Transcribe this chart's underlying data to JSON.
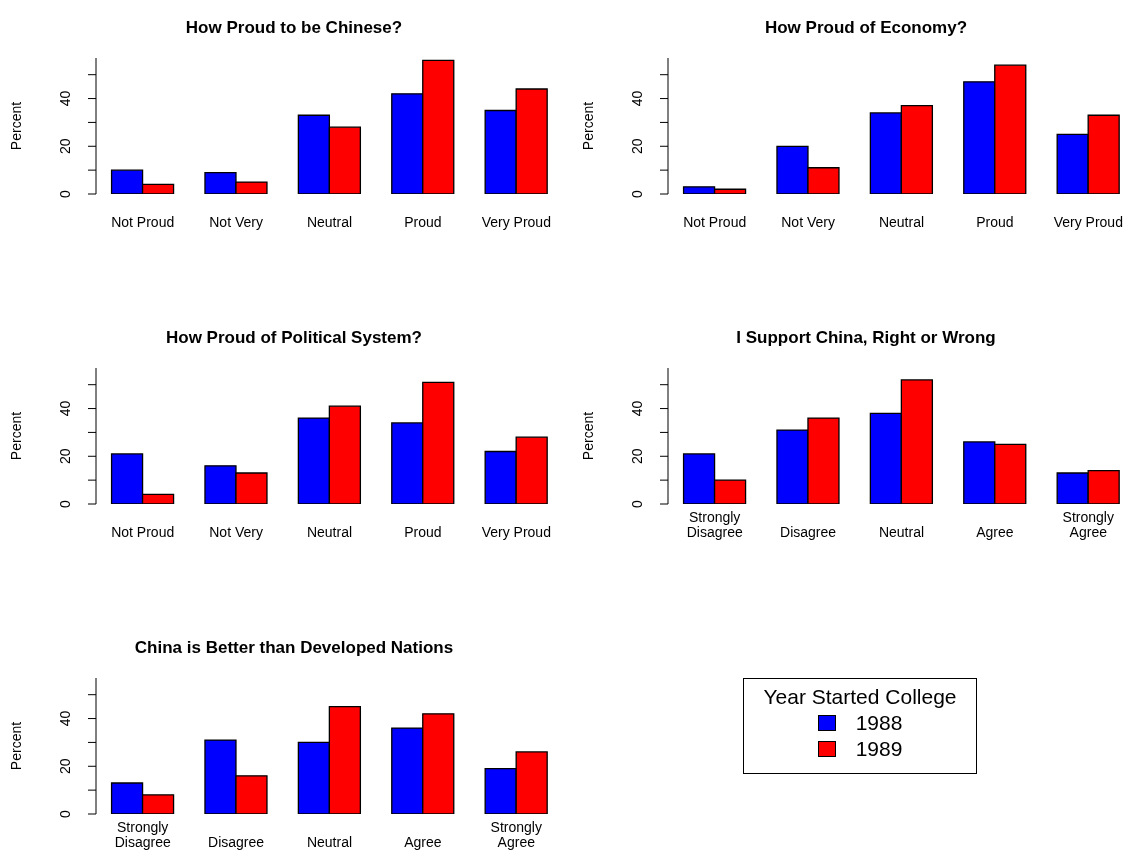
{
  "chart_data": [
    {
      "type": "bar",
      "title": "How Proud to be Chinese?",
      "ylabel": "Percent",
      "categories": [
        "Not Proud",
        "Not Very",
        "Neutral",
        "Proud",
        "Very Proud"
      ],
      "ylim": [
        0,
        57
      ],
      "yticks": [
        0,
        {
          "value": 10,
          "label": null
        },
        20,
        {
          "value": 30,
          "label": null
        },
        40,
        {
          "value": 50,
          "label": null
        }
      ],
      "grid": false,
      "legend": false,
      "series": [
        {
          "color": "#0000ff",
          "values": [
            10,
            9,
            33,
            42,
            35
          ]
        },
        {
          "color": "#ff0000",
          "values": [
            4,
            5,
            28,
            56,
            44
          ]
        }
      ]
    },
    {
      "type": "bar",
      "title": "How Proud of Economy?",
      "ylabel": "Percent",
      "categories": [
        "Not Proud",
        "Not Very",
        "Neutral",
        "Proud",
        "Very Proud"
      ],
      "ylim": [
        0,
        57
      ],
      "yticks": [
        0,
        {
          "value": 10,
          "label": null
        },
        20,
        {
          "value": 30,
          "label": null
        },
        40,
        {
          "value": 50,
          "label": null
        }
      ],
      "grid": false,
      "legend": false,
      "series": [
        {
          "color": "#0000ff",
          "values": [
            3,
            20,
            34,
            47,
            25
          ]
        },
        {
          "color": "#ff0000",
          "values": [
            2,
            11,
            37,
            54,
            33
          ]
        }
      ]
    },
    {
      "type": "bar",
      "title": "How Proud of Political System?",
      "ylabel": "Percent",
      "categories": [
        "Not Proud",
        "Not Very",
        "Neutral",
        "Proud",
        "Very Proud"
      ],
      "ylim": [
        0,
        57
      ],
      "yticks": [
        0,
        {
          "value": 10,
          "label": null
        },
        20,
        {
          "value": 30,
          "label": null
        },
        40,
        {
          "value": 50,
          "label": null
        }
      ],
      "grid": false,
      "legend": false,
      "series": [
        {
          "color": "#0000ff",
          "values": [
            21,
            16,
            36,
            34,
            22
          ]
        },
        {
          "color": "#ff0000",
          "values": [
            4,
            13,
            41,
            51,
            28
          ]
        }
      ]
    },
    {
      "type": "bar",
      "title": "I Support China, Right or Wrong",
      "ylabel": "Percent",
      "categories": [
        "Strongly\nDisagree",
        "Disagree",
        "Neutral",
        "Agree",
        "Strongly\nAgree"
      ],
      "ylim": [
        0,
        57
      ],
      "yticks": [
        0,
        {
          "value": 10,
          "label": null
        },
        20,
        {
          "value": 30,
          "label": null
        },
        40,
        {
          "value": 50,
          "label": null
        }
      ],
      "grid": false,
      "legend": false,
      "series": [
        {
          "color": "#0000ff",
          "values": [
            21,
            31,
            38,
            26,
            13
          ]
        },
        {
          "color": "#ff0000",
          "values": [
            10,
            36,
            52,
            25,
            14
          ]
        }
      ]
    },
    {
      "type": "bar",
      "title": "China is Better than Developed Nations",
      "ylabel": "Percent",
      "categories": [
        "Strongly\nDisagree",
        "Disagree",
        "Neutral",
        "Agree",
        "Strongly\nAgree"
      ],
      "ylim": [
        0,
        57
      ],
      "yticks": [
        0,
        {
          "value": 10,
          "label": null
        },
        20,
        {
          "value": 30,
          "label": null
        },
        40,
        {
          "value": 50,
          "label": null
        }
      ],
      "grid": false,
      "legend": "right",
      "legend_title": "Year Started College",
      "series": [
        {
          "name": "1988",
          "color": "#0000ff",
          "values": [
            13,
            31,
            30,
            36,
            19
          ]
        },
        {
          "name": "1989",
          "color": "#ff0000",
          "values": [
            8,
            16,
            45,
            42,
            26
          ]
        }
      ]
    }
  ]
}
